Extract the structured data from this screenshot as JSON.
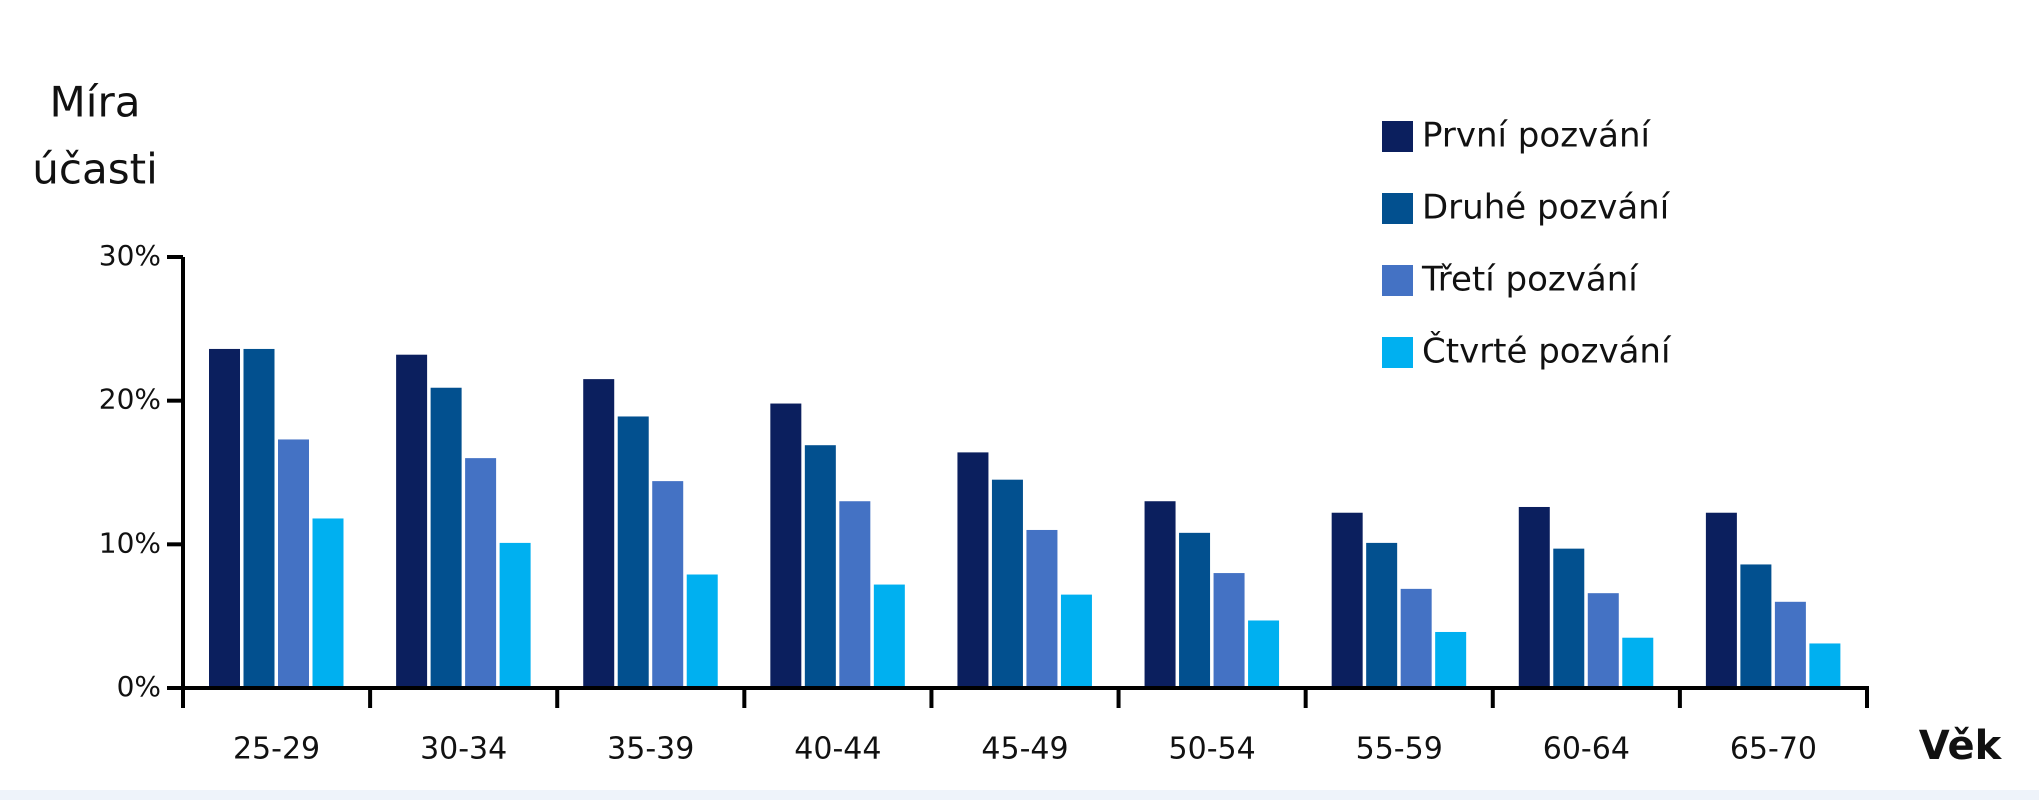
{
  "chart_data": {
    "type": "bar",
    "y_label": [
      "Míra",
      "účasti"
    ],
    "x_label": "Věk",
    "categories": [
      "25-29",
      "30-34",
      "35-39",
      "40-44",
      "45-49",
      "50-54",
      "55-59",
      "60-64",
      "65-70"
    ],
    "series": [
      {
        "name": "První pozvání",
        "color": "#0b1f5e",
        "values": [
          23.6,
          23.2,
          21.5,
          19.8,
          16.4,
          13.0,
          12.2,
          12.6,
          12.2
        ]
      },
      {
        "name": "Druhé pozvání",
        "color": "#02508f",
        "values": [
          23.6,
          20.9,
          18.9,
          16.9,
          14.5,
          10.8,
          10.1,
          9.7,
          8.6
        ]
      },
      {
        "name": "Třetí pozvání",
        "color": "#4472c4",
        "values": [
          17.3,
          16.0,
          14.4,
          13.0,
          11.0,
          8.0,
          6.9,
          6.6,
          6.0
        ]
      },
      {
        "name": "Čtvrté pozvání",
        "color": "#00b0f0",
        "values": [
          11.8,
          10.1,
          7.9,
          7.2,
          6.5,
          4.7,
          3.9,
          3.5,
          3.1
        ]
      }
    ],
    "ylim": [
      0,
      30
    ],
    "yticks": [
      {
        "value": 0,
        "label": "0%"
      },
      {
        "value": 10,
        "label": "10%"
      },
      {
        "value": 20,
        "label": "20%"
      },
      {
        "value": 30,
        "label": "30%"
      }
    ],
    "legend": "top-right"
  }
}
